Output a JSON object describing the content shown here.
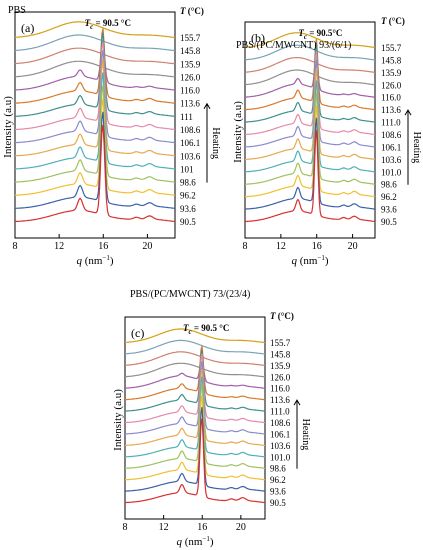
{
  "chart_data": [
    {
      "type": "line",
      "title": "PBS",
      "panel_label": "(a)",
      "annotation": "T_c = 90.5 °C",
      "xlabel": "q (nm⁻¹)",
      "ylabel": "Intensity (a.u)",
      "legend_title": "T (°C)",
      "side_label": "Heating",
      "xlim": [
        8,
        22.5
      ],
      "xticks": [
        8,
        12,
        16,
        20
      ],
      "series": [
        {
          "name": "155.7",
          "peaks": []
        },
        {
          "name": "145.8",
          "peaks": []
        },
        {
          "name": "135.9",
          "peaks": []
        },
        {
          "name": "126.0",
          "peaks": []
        },
        {
          "name": "116.0",
          "peaks": [
            0.22,
            0.45,
            0.05
          ]
        },
        {
          "name": "113.6",
          "peaks": [
            0.28,
            0.75,
            0.08
          ]
        },
        {
          "name": "111",
          "peaks": [
            0.3,
            0.85,
            0.08
          ]
        },
        {
          "name": "108.6",
          "peaks": [
            0.32,
            0.9,
            0.09
          ]
        },
        {
          "name": "106.1",
          "peaks": [
            0.34,
            0.95,
            0.1
          ]
        },
        {
          "name": "103.6",
          "peaks": [
            0.35,
            1.0,
            0.1
          ]
        },
        {
          "name": "101",
          "peaks": [
            0.36,
            1.0,
            0.1
          ]
        },
        {
          "name": "98.6",
          "peaks": [
            0.37,
            1.0,
            0.1
          ]
        },
        {
          "name": "96.2",
          "peaks": [
            0.38,
            1.0,
            0.11
          ]
        },
        {
          "name": "93.6",
          "peaks": [
            0.39,
            1.0,
            0.11
          ]
        },
        {
          "name": "90.5",
          "peaks": [
            0.4,
            1.0,
            0.11
          ]
        }
      ]
    },
    {
      "type": "line",
      "title": "PBS/(PC/MWCNT) 93/(6/1)",
      "panel_label": "(b)",
      "annotation": "T_c = 90.5°C",
      "xlabel": "q (nm⁻¹)",
      "ylabel": "Intensity (a.u)",
      "legend_title": "T (°C)",
      "side_label": "Heating",
      "xlim": [
        8,
        22.5
      ],
      "xticks": [
        8,
        12,
        16,
        20
      ],
      "series": [
        {
          "name": "155.7",
          "peaks": []
        },
        {
          "name": "145.8",
          "peaks": []
        },
        {
          "name": "135.9",
          "peaks": []
        },
        {
          "name": "126.0",
          "peaks": []
        },
        {
          "name": "116.0",
          "peaks": [
            0.2,
            0.4,
            0.05
          ]
        },
        {
          "name": "113.6",
          "peaks": [
            0.28,
            0.75,
            0.08
          ]
        },
        {
          "name": "111.0",
          "peaks": [
            0.3,
            0.85,
            0.08
          ]
        },
        {
          "name": "108.6",
          "peaks": [
            0.32,
            0.9,
            0.09
          ]
        },
        {
          "name": "106.1",
          "peaks": [
            0.34,
            0.95,
            0.1
          ]
        },
        {
          "name": "103.6",
          "peaks": [
            0.35,
            1.0,
            0.1
          ]
        },
        {
          "name": "101.0",
          "peaks": [
            0.36,
            1.0,
            0.1
          ]
        },
        {
          "name": "98.6",
          "peaks": [
            0.37,
            1.0,
            0.1
          ]
        },
        {
          "name": "96.2",
          "peaks": [
            0.38,
            1.0,
            0.11
          ]
        },
        {
          "name": "93.6",
          "peaks": [
            0.39,
            1.0,
            0.11
          ]
        },
        {
          "name": "90.5",
          "peaks": [
            0.4,
            1.0,
            0.11
          ]
        }
      ]
    },
    {
      "type": "line",
      "title": "PBS/(PC/MWCNT) 73/(23/4)",
      "panel_label": "(c)",
      "annotation": "T_c = 90.5 °C",
      "xlabel": "q (nm⁻¹)",
      "ylabel": "Intensity (a.u)",
      "legend_title": "T (°C)",
      "side_label": "Heating",
      "xlim": [
        8,
        22.5
      ],
      "xticks": [
        8,
        12,
        16,
        20
      ],
      "series": [
        {
          "name": "155.7",
          "peaks": []
        },
        {
          "name": "145.8",
          "peaks": []
        },
        {
          "name": "135.9",
          "peaks": []
        },
        {
          "name": "126.0",
          "peaks": []
        },
        {
          "name": "116.0",
          "peaks": [
            0.1,
            0.3,
            0.04
          ]
        },
        {
          "name": "113.6",
          "peaks": [
            0.18,
            0.6,
            0.06
          ]
        },
        {
          "name": "111.0",
          "peaks": [
            0.22,
            0.7,
            0.07
          ]
        },
        {
          "name": "108.6",
          "peaks": [
            0.24,
            0.8,
            0.08
          ]
        },
        {
          "name": "106.1",
          "peaks": [
            0.26,
            0.85,
            0.08
          ]
        },
        {
          "name": "103.6",
          "peaks": [
            0.27,
            0.9,
            0.09
          ]
        },
        {
          "name": "101.0",
          "peaks": [
            0.28,
            0.95,
            0.09
          ]
        },
        {
          "name": "98.6",
          "peaks": [
            0.29,
            1.0,
            0.1
          ]
        },
        {
          "name": "96.2",
          "peaks": [
            0.3,
            1.0,
            0.1
          ]
        },
        {
          "name": "93.6",
          "peaks": [
            0.31,
            1.0,
            0.1
          ]
        },
        {
          "name": "90.5",
          "peaks": [
            0.32,
            1.0,
            0.11
          ]
        }
      ]
    }
  ],
  "colors": [
    "#d4a017",
    "#7aa3b8",
    "#d08070",
    "#8f8f8f",
    "#a05fa8",
    "#d97a2b",
    "#3f8f8c",
    "#e58aa8",
    "#8a8ad0",
    "#e8a850",
    "#50b0b8",
    "#a0c060",
    "#f0c030",
    "#3a60a8",
    "#d83030"
  ]
}
